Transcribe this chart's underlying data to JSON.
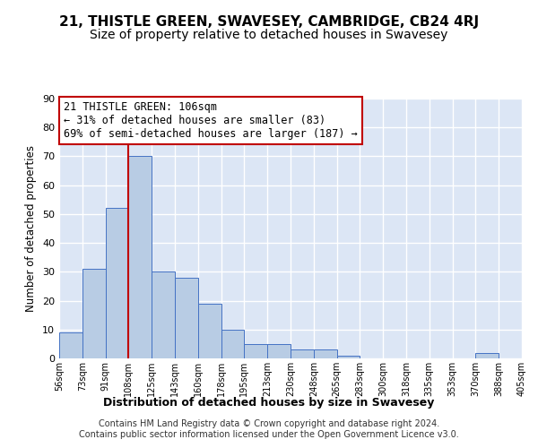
{
  "title": "21, THISTLE GREEN, SWAVESEY, CAMBRIDGE, CB24 4RJ",
  "subtitle": "Size of property relative to detached houses in Swavesey",
  "xlabel": "Distribution of detached houses by size in Swavesey",
  "ylabel": "Number of detached properties",
  "bar_values": [
    9,
    31,
    52,
    70,
    30,
    28,
    19,
    10,
    5,
    5,
    3,
    3,
    1,
    0,
    0,
    0,
    0,
    0,
    2,
    0
  ],
  "bin_labels": [
    "56sqm",
    "73sqm",
    "91sqm",
    "108sqm",
    "125sqm",
    "143sqm",
    "160sqm",
    "178sqm",
    "195sqm",
    "213sqm",
    "230sqm",
    "248sqm",
    "265sqm",
    "283sqm",
    "300sqm",
    "318sqm",
    "335sqm",
    "353sqm",
    "370sqm",
    "388sqm",
    "405sqm"
  ],
  "bar_color": "#b8cce4",
  "bar_edge_color": "#4472c4",
  "vline_x_index": 3,
  "vline_color": "#c00000",
  "annotation_text": "21 THISTLE GREEN: 106sqm\n← 31% of detached houses are smaller (83)\n69% of semi-detached houses are larger (187) →",
  "annotation_box_color": "#ffffff",
  "annotation_box_edgecolor": "#c00000",
  "ylim": [
    0,
    90
  ],
  "yticks": [
    0,
    10,
    20,
    30,
    40,
    50,
    60,
    70,
    80,
    90
  ],
  "footer_text": "Contains HM Land Registry data © Crown copyright and database right 2024.\nContains public sector information licensed under the Open Government Licence v3.0.",
  "bg_color": "#dce6f5",
  "grid_color": "#ffffff",
  "title_fontsize": 11,
  "subtitle_fontsize": 10,
  "annotation_fontsize": 8.5,
  "footer_fontsize": 7
}
